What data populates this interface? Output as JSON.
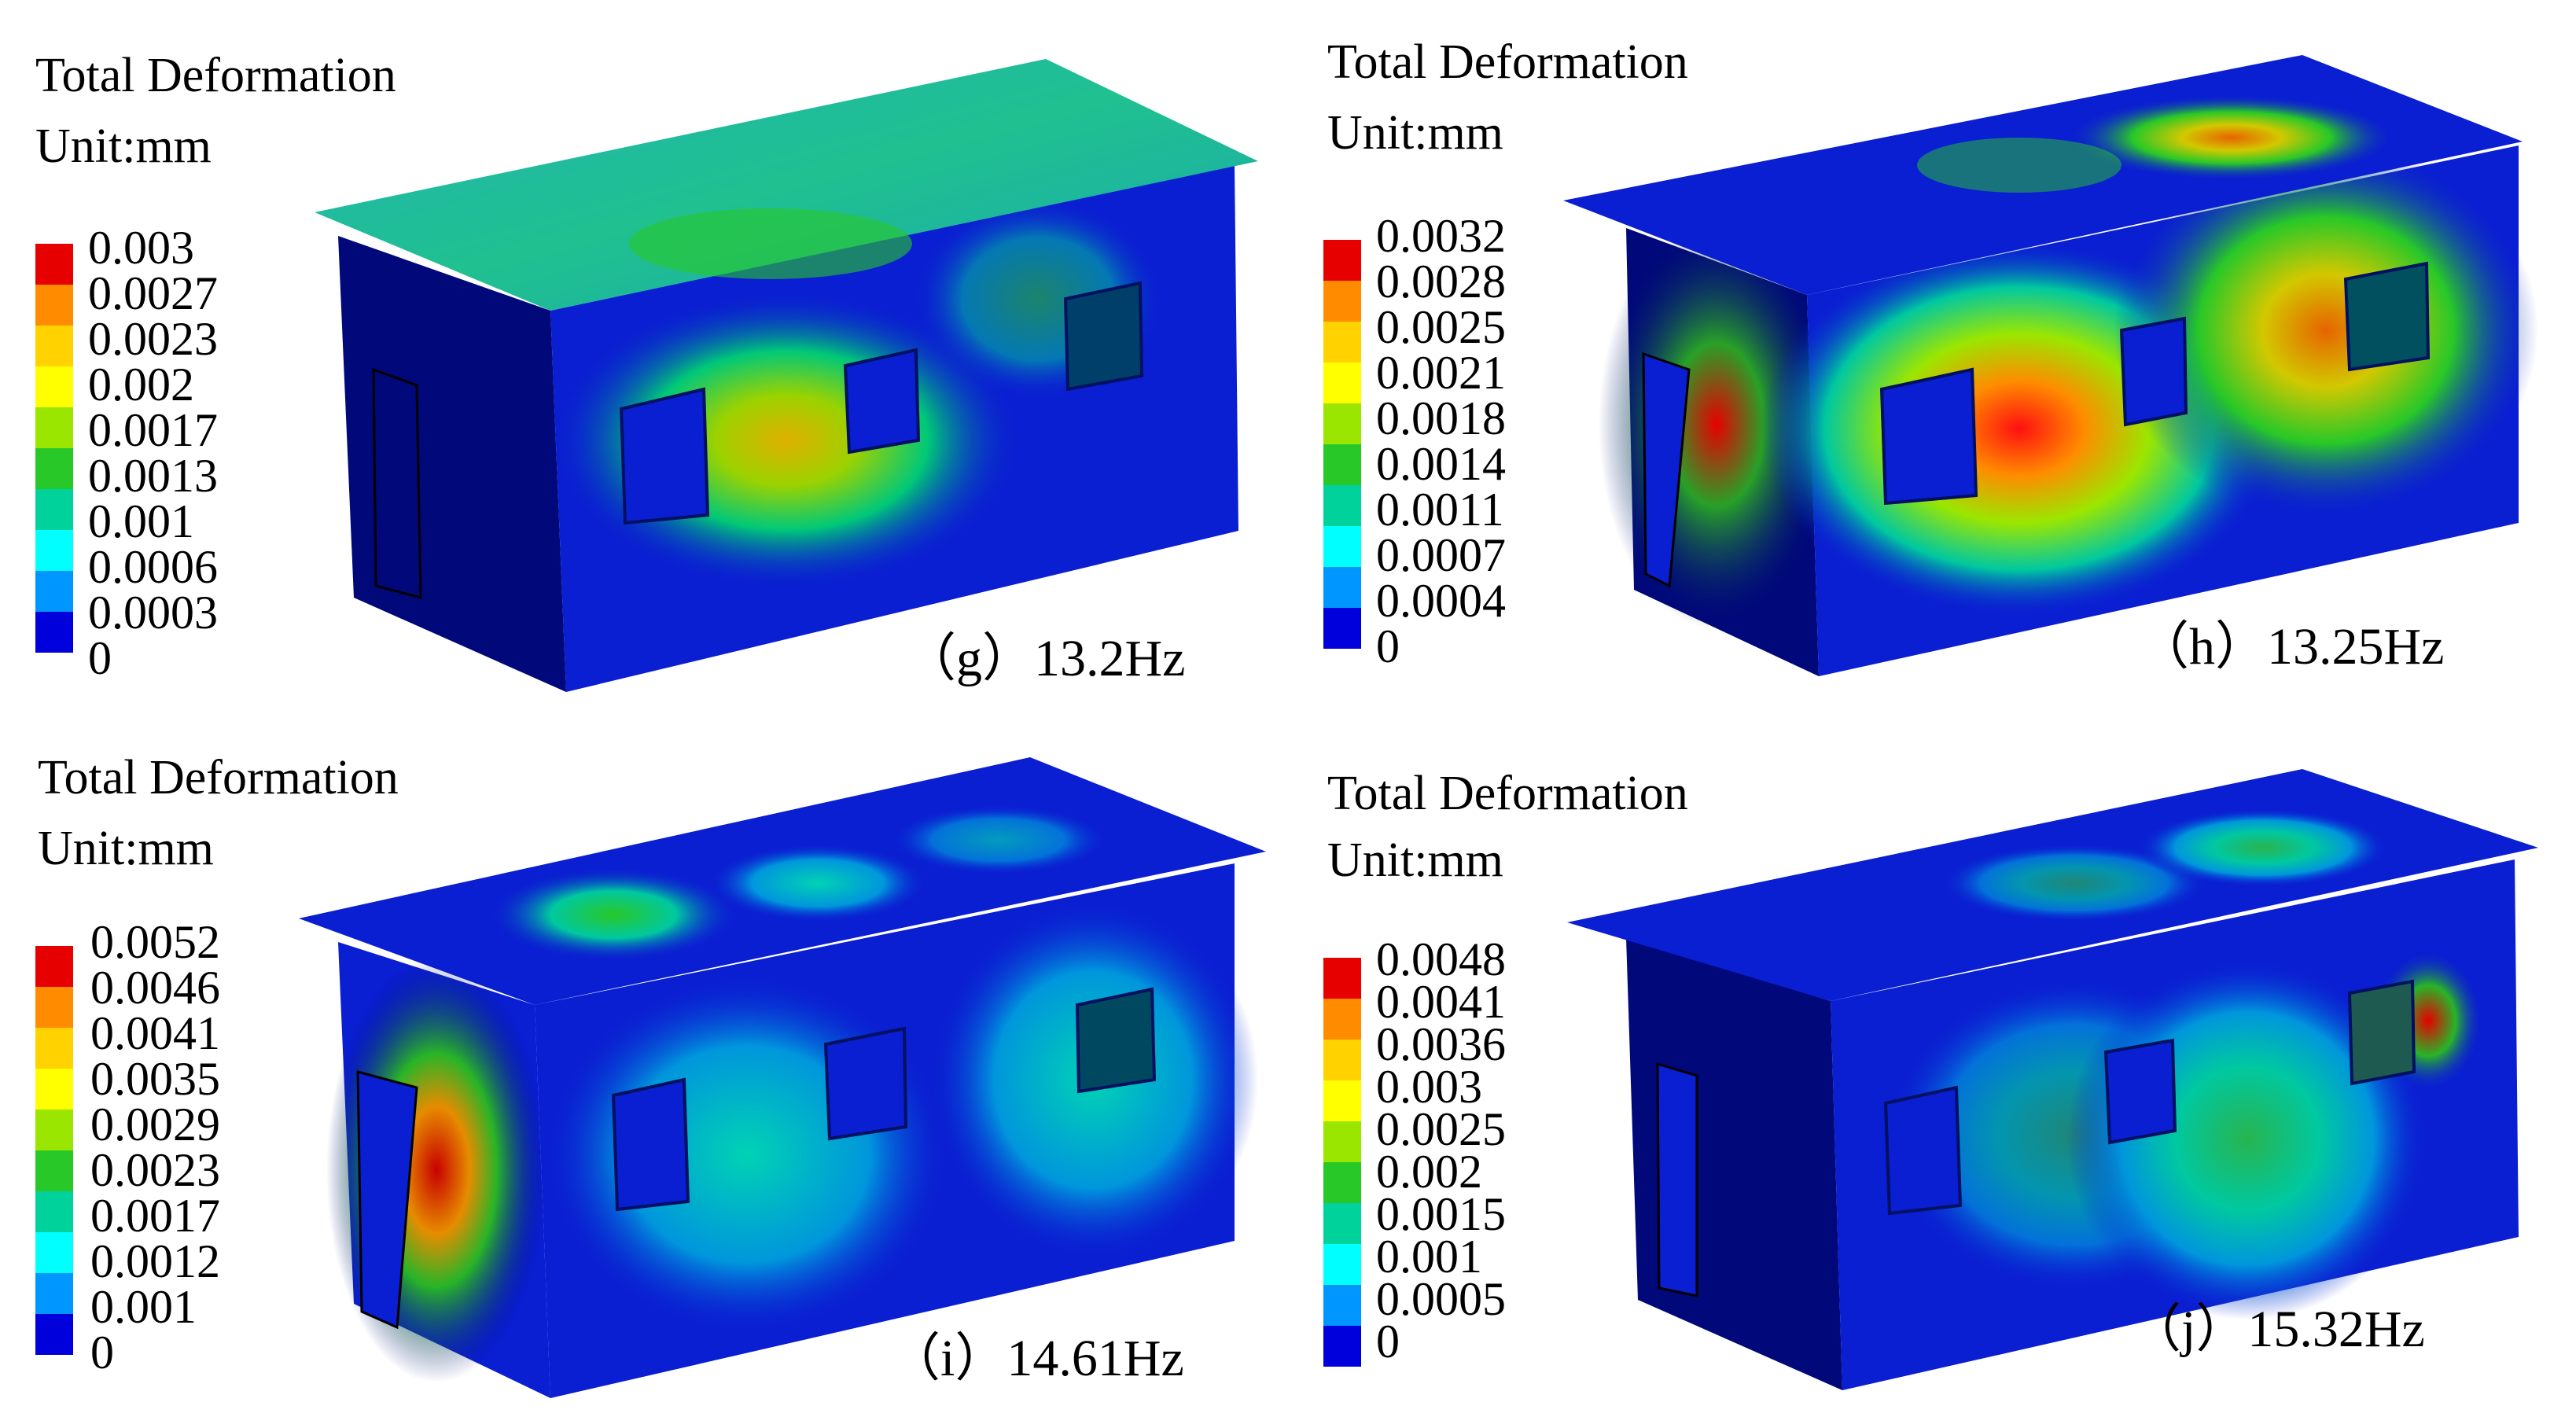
{
  "panels": [
    {
      "id": "g",
      "legend_title": "Total Deformation",
      "unit": "Unit:mm",
      "ticks": [
        "0.003",
        "0.0027",
        "0.0023",
        "0.002",
        "0.0017",
        "0.0013",
        "0.001",
        "0.0006",
        "0.0003",
        "0"
      ],
      "caption": "（g）13.2Hz"
    },
    {
      "id": "h",
      "legend_title": "Total Deformation",
      "unit": "Unit:mm",
      "ticks": [
        "0.0032",
        "0.0028",
        "0.0025",
        "0.0021",
        "0.0018",
        "0.0014",
        "0.0011",
        "0.0007",
        "0.0004",
        "0"
      ],
      "caption": "（h）13.25Hz"
    },
    {
      "id": "i",
      "legend_title": "Total Deformation",
      "unit": "Unit:mm",
      "ticks": [
        "0.0052",
        "0.0046",
        "0.0041",
        "0.0035",
        "0.0029",
        "0.0023",
        "0.0017",
        "0.0012",
        "0.001",
        "0"
      ],
      "caption": "（i）14.61Hz"
    },
    {
      "id": "j",
      "legend_title": "Total Deformation",
      "unit": "Unit:mm",
      "ticks": [
        "0.0048",
        "0.0041",
        "0.0036",
        "0.003",
        "0.0025",
        "0.002",
        "0.0015",
        "0.001",
        "0.0005",
        "0"
      ],
      "caption": "（j）15.32Hz"
    }
  ],
  "colors": {
    "scale": [
      "#e60000",
      "#ff8c00",
      "#ffd200",
      "#ffff00",
      "#9be600",
      "#28c828",
      "#00d29b",
      "#00ffff",
      "#0096ff",
      "#0000dc"
    ],
    "model_base": "#0a1ed2",
    "model_dark": "#00087a"
  }
}
